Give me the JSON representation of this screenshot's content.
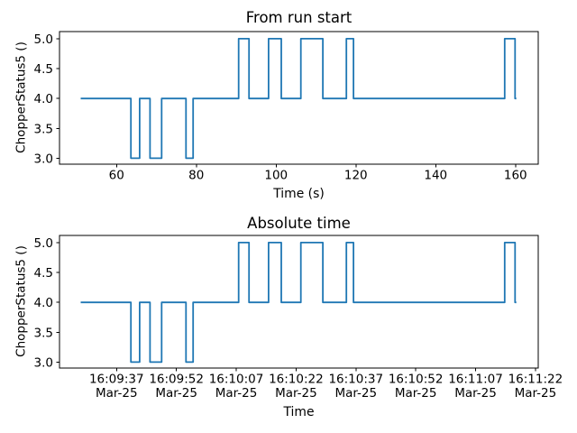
{
  "figure": {
    "background": "#ffffff",
    "text_color": "#000000",
    "spine_color": "#000000"
  },
  "chart_data": [
    {
      "type": "line",
      "subtype": "step",
      "title": "From run start",
      "xlabel": "Time (s)",
      "ylabel": "ChopperStatus5 ()",
      "line_color": "#1f77b4",
      "grid": false,
      "legend": null,
      "xlim": [
        45.7,
        165.7
      ],
      "ylim": [
        2.9,
        5.12
      ],
      "xticks": [
        {
          "x": 60,
          "label": "60"
        },
        {
          "x": 80,
          "label": "80"
        },
        {
          "x": 100,
          "label": "100"
        },
        {
          "x": 120,
          "label": "120"
        },
        {
          "x": 140,
          "label": "140"
        },
        {
          "x": 160,
          "label": "160"
        }
      ],
      "yticks": [
        {
          "y": 3.0,
          "label": "3.0"
        },
        {
          "y": 3.5,
          "label": "3.5"
        },
        {
          "y": 4.0,
          "label": "4.0"
        },
        {
          "y": 4.5,
          "label": "4.5"
        },
        {
          "y": 5.0,
          "label": "5.0"
        }
      ],
      "points": [
        [
          51.0,
          4
        ],
        [
          63.6,
          3
        ],
        [
          65.8,
          4
        ],
        [
          68.4,
          3
        ],
        [
          71.3,
          4
        ],
        [
          77.4,
          3
        ],
        [
          79.2,
          4
        ],
        [
          90.6,
          5
        ],
        [
          93.2,
          4
        ],
        [
          98.1,
          5
        ],
        [
          101.3,
          4
        ],
        [
          106.2,
          5
        ],
        [
          111.7,
          4
        ],
        [
          117.6,
          5
        ],
        [
          119.4,
          4
        ],
        [
          157.3,
          5
        ],
        [
          159.9,
          4
        ]
      ],
      "end_x": 160.2
    },
    {
      "type": "line",
      "subtype": "step",
      "title": "Absolute time",
      "xlabel": "Time",
      "ylabel": "ChopperStatus5 ()",
      "line_color": "#1f77b4",
      "grid": false,
      "legend": null,
      "x_unit_note": "seconds from run start; 60 s corresponds to tick 16:09:37 Mar-25",
      "xlim": [
        45.7,
        165.7
      ],
      "ylim": [
        2.9,
        5.12
      ],
      "xticks": [
        {
          "x": 60,
          "label": "16:09:37",
          "label2": "Mar-25"
        },
        {
          "x": 75,
          "label": "16:09:52",
          "label2": "Mar-25"
        },
        {
          "x": 90,
          "label": "16:10:07",
          "label2": "Mar-25"
        },
        {
          "x": 105,
          "label": "16:10:22",
          "label2": "Mar-25"
        },
        {
          "x": 120,
          "label": "16:10:37",
          "label2": "Mar-25"
        },
        {
          "x": 135,
          "label": "16:10:52",
          "label2": "Mar-25"
        },
        {
          "x": 150,
          "label": "16:11:07",
          "label2": "Mar-25"
        },
        {
          "x": 165,
          "label": "16:11:22",
          "label2": "Mar-25"
        }
      ],
      "yticks": [
        {
          "y": 3.0,
          "label": "3.0"
        },
        {
          "y": 3.5,
          "label": "3.5"
        },
        {
          "y": 4.0,
          "label": "4.0"
        },
        {
          "y": 4.5,
          "label": "4.5"
        },
        {
          "y": 5.0,
          "label": "5.0"
        }
      ],
      "points": [
        [
          51.0,
          4
        ],
        [
          63.6,
          3
        ],
        [
          65.8,
          4
        ],
        [
          68.4,
          3
        ],
        [
          71.3,
          4
        ],
        [
          77.4,
          3
        ],
        [
          79.2,
          4
        ],
        [
          90.6,
          5
        ],
        [
          93.2,
          4
        ],
        [
          98.1,
          5
        ],
        [
          101.3,
          4
        ],
        [
          106.2,
          5
        ],
        [
          111.7,
          4
        ],
        [
          117.6,
          5
        ],
        [
          119.4,
          4
        ],
        [
          157.3,
          5
        ],
        [
          159.9,
          4
        ]
      ],
      "end_x": 160.2
    }
  ]
}
